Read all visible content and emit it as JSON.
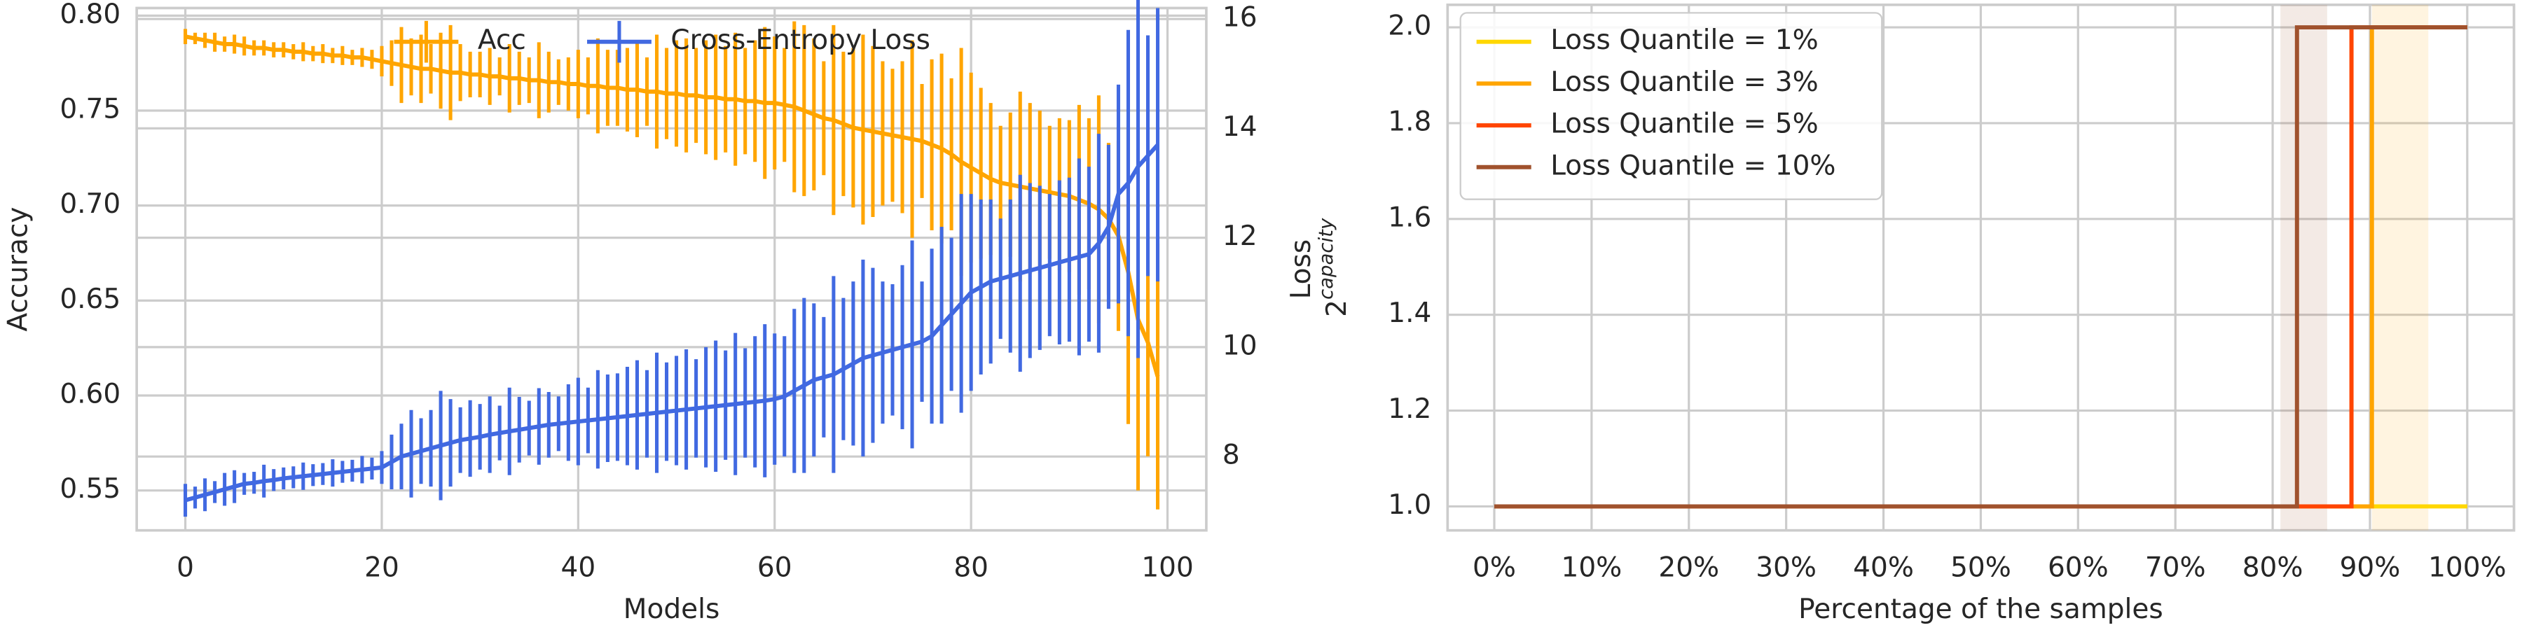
{
  "chart_data": [
    {
      "type": "line",
      "xlabel": "Models",
      "ylabel": "Accuracy",
      "y2label": "Loss",
      "grid": true,
      "legend": "upper center",
      "xlim": [
        -4.95,
        103.95
      ],
      "xticks": [
        0,
        20,
        40,
        60,
        80,
        100
      ],
      "ylim": [
        0.529,
        0.804
      ],
      "yticks": [
        {
          "value": 0.55,
          "label": "0.55"
        },
        {
          "value": 0.6,
          "label": "0.60"
        },
        {
          "value": 0.65,
          "label": "0.65"
        },
        {
          "value": 0.7,
          "label": "0.70"
        },
        {
          "value": 0.75,
          "label": "0.75"
        },
        {
          "value": 0.8,
          "label": "0.80"
        }
      ],
      "y2lim": [
        6.65,
        16.2
      ],
      "y2ticks": [
        8,
        10,
        12,
        14,
        16
      ],
      "x": [
        0,
        1,
        2,
        3,
        4,
        5,
        6,
        7,
        8,
        9,
        10,
        11,
        12,
        13,
        14,
        15,
        16,
        17,
        18,
        19,
        20,
        21,
        22,
        23,
        24,
        25,
        26,
        27,
        28,
        29,
        30,
        31,
        32,
        33,
        34,
        35,
        36,
        37,
        38,
        39,
        40,
        41,
        42,
        43,
        44,
        45,
        46,
        47,
        48,
        49,
        50,
        51,
        52,
        53,
        54,
        55,
        56,
        57,
        58,
        59,
        60,
        61,
        62,
        63,
        64,
        65,
        66,
        67,
        68,
        69,
        70,
        71,
        72,
        73,
        74,
        75,
        76,
        77,
        78,
        79,
        80,
        81,
        82,
        83,
        84,
        85,
        86,
        87,
        88,
        89,
        90,
        91,
        92,
        93,
        94,
        95,
        96,
        97,
        98,
        99
      ],
      "series": [
        {
          "name": "Acc",
          "color": "#ffa500",
          "values": [
            0.789,
            0.788,
            0.787,
            0.786,
            0.785,
            0.785,
            0.784,
            0.783,
            0.783,
            0.782,
            0.782,
            0.781,
            0.781,
            0.78,
            0.78,
            0.779,
            0.779,
            0.778,
            0.778,
            0.777,
            0.776,
            0.775,
            0.774,
            0.773,
            0.772,
            0.772,
            0.771,
            0.77,
            0.77,
            0.769,
            0.769,
            0.768,
            0.768,
            0.767,
            0.767,
            0.766,
            0.766,
            0.765,
            0.765,
            0.764,
            0.764,
            0.763,
            0.763,
            0.762,
            0.762,
            0.761,
            0.761,
            0.76,
            0.76,
            0.759,
            0.759,
            0.758,
            0.758,
            0.757,
            0.757,
            0.756,
            0.756,
            0.755,
            0.755,
            0.754,
            0.754,
            0.753,
            0.752,
            0.75,
            0.748,
            0.746,
            0.745,
            0.743,
            0.741,
            0.74,
            0.739,
            0.738,
            0.737,
            0.736,
            0.735,
            0.734,
            0.732,
            0.73,
            0.727,
            0.723,
            0.72,
            0.717,
            0.714,
            0.712,
            0.711,
            0.71,
            0.709,
            0.708,
            0.707,
            0.706,
            0.705,
            0.703,
            0.701,
            0.698,
            0.693,
            0.684,
            0.665,
            0.64,
            0.628,
            0.61
          ],
          "errors": [
            0.004,
            0.003,
            0.004,
            0.005,
            0.004,
            0.005,
            0.005,
            0.004,
            0.004,
            0.004,
            0.004,
            0.004,
            0.005,
            0.004,
            0.005,
            0.004,
            0.005,
            0.004,
            0.005,
            0.005,
            0.008,
            0.012,
            0.02,
            0.015,
            0.018,
            0.013,
            0.02,
            0.025,
            0.015,
            0.012,
            0.012,
            0.015,
            0.01,
            0.018,
            0.014,
            0.012,
            0.02,
            0.016,
            0.012,
            0.014,
            0.018,
            0.015,
            0.025,
            0.02,
            0.02,
            0.022,
            0.025,
            0.018,
            0.03,
            0.024,
            0.028,
            0.03,
            0.025,
            0.03,
            0.033,
            0.028,
            0.035,
            0.028,
            0.032,
            0.04,
            0.035,
            0.03,
            0.045,
            0.045,
            0.04,
            0.03,
            0.05,
            0.038,
            0.042,
            0.05,
            0.045,
            0.038,
            0.035,
            0.04,
            0.052,
            0.03,
            0.045,
            0.05,
            0.04,
            0.06,
            0.05,
            0.045,
            0.04,
            0.03,
            0.038,
            0.05,
            0.045,
            0.042,
            0.035,
            0.04,
            0.04,
            0.05,
            0.045,
            0.06,
            0.04,
            0.05,
            0.08,
            0.09,
            0.06,
            0.07
          ]
        },
        {
          "name": "Cross-Entropy Loss",
          "color": "#4169e1",
          "axis": "y2",
          "values": [
            7.2,
            7.25,
            7.3,
            7.35,
            7.4,
            7.45,
            7.5,
            7.52,
            7.55,
            7.57,
            7.6,
            7.62,
            7.64,
            7.66,
            7.68,
            7.7,
            7.72,
            7.74,
            7.76,
            7.78,
            7.8,
            7.9,
            8.0,
            8.05,
            8.1,
            8.15,
            8.2,
            8.25,
            8.3,
            8.33,
            8.36,
            8.4,
            8.43,
            8.46,
            8.49,
            8.52,
            8.55,
            8.58,
            8.6,
            8.62,
            8.64,
            8.66,
            8.68,
            8.7,
            8.72,
            8.74,
            8.76,
            8.78,
            8.8,
            8.82,
            8.84,
            8.86,
            8.88,
            8.9,
            8.92,
            8.94,
            8.96,
            8.98,
            9.0,
            9.02,
            9.05,
            9.1,
            9.2,
            9.3,
            9.4,
            9.45,
            9.5,
            9.6,
            9.7,
            9.8,
            9.85,
            9.9,
            9.95,
            10.0,
            10.05,
            10.1,
            10.2,
            10.4,
            10.6,
            10.8,
            11.0,
            11.1,
            11.2,
            11.25,
            11.3,
            11.35,
            11.4,
            11.45,
            11.5,
            11.55,
            11.6,
            11.65,
            11.7,
            11.9,
            12.2,
            12.8,
            13.0,
            13.3,
            13.5,
            13.7
          ],
          "errors": [
            0.3,
            0.2,
            0.3,
            0.2,
            0.3,
            0.3,
            0.2,
            0.2,
            0.3,
            0.2,
            0.2,
            0.2,
            0.25,
            0.2,
            0.2,
            0.25,
            0.2,
            0.2,
            0.25,
            0.2,
            0.3,
            0.5,
            0.6,
            0.8,
            0.6,
            0.7,
            1.0,
            0.8,
            0.6,
            0.7,
            0.6,
            0.7,
            0.5,
            0.8,
            0.6,
            0.5,
            0.7,
            0.6,
            0.5,
            0.7,
            0.8,
            0.6,
            0.9,
            0.8,
            0.8,
            0.9,
            1.0,
            0.8,
            1.1,
            0.9,
            1.0,
            1.1,
            0.9,
            1.1,
            1.2,
            1.0,
            1.3,
            1.0,
            1.2,
            1.4,
            1.2,
            1.1,
            1.5,
            1.6,
            1.4,
            1.1,
            1.8,
            1.3,
            1.5,
            1.8,
            1.6,
            1.3,
            1.2,
            1.5,
            1.9,
            1.1,
            1.6,
            1.8,
            1.4,
            2.0,
            1.8,
            1.6,
            1.5,
            1.1,
            1.4,
            1.8,
            1.6,
            1.5,
            1.3,
            1.5,
            1.5,
            1.8,
            1.6,
            2.0,
            1.5,
            2.0,
            2.8,
            3.5,
            2.2,
            2.5
          ]
        }
      ]
    },
    {
      "type": "line",
      "xlabel": "Percentage of the samples",
      "ylabel": "2",
      "ylabel_sup": "capacity",
      "grid": true,
      "legend": "upper left",
      "xlim": [
        -4.8,
        104.8
      ],
      "xticks": [
        {
          "value": 0,
          "label": "0%"
        },
        {
          "value": 10,
          "label": "10%"
        },
        {
          "value": 20,
          "label": "20%"
        },
        {
          "value": 30,
          "label": "30%"
        },
        {
          "value": 40,
          "label": "40%"
        },
        {
          "value": 50,
          "label": "50%"
        },
        {
          "value": 60,
          "label": "60%"
        },
        {
          "value": 70,
          "label": "70%"
        },
        {
          "value": 80,
          "label": "80%"
        },
        {
          "value": 90,
          "label": "90%"
        },
        {
          "value": 100,
          "label": "100%"
        }
      ],
      "ylim": [
        0.95,
        2.047
      ],
      "yticks": [
        {
          "value": 1,
          "label": "1.0"
        },
        {
          "value": 1.2,
          "label": "1.2"
        },
        {
          "value": 1.4,
          "label": "1.4"
        },
        {
          "value": 1.6,
          "label": "1.6"
        },
        {
          "value": 1.8,
          "label": "1.8"
        },
        {
          "value": 2,
          "label": "2.0"
        }
      ],
      "series": [
        {
          "name": "Loss Quantile = 1%",
          "color": "#ffd700",
          "x": [
            0,
            100
          ],
          "values": [
            1,
            1
          ]
        },
        {
          "name": "Loss Quantile = 3%",
          "color": "#ffa500",
          "x": [
            0,
            90.2,
            90.2,
            100
          ],
          "values": [
            1,
            1,
            2,
            2
          ],
          "band": [
            90.2,
            96.0
          ]
        },
        {
          "name": "Loss Quantile = 5%",
          "color": "#ff4500",
          "x": [
            0,
            88.1,
            88.1,
            100
          ],
          "values": [
            1,
            1,
            2,
            2
          ]
        },
        {
          "name": "Loss Quantile = 10%",
          "color": "#a0522d",
          "x": [
            0,
            82.5,
            82.5,
            100
          ],
          "values": [
            1,
            1,
            2,
            2
          ],
          "band": [
            80.8,
            85.6
          ]
        }
      ]
    }
  ]
}
